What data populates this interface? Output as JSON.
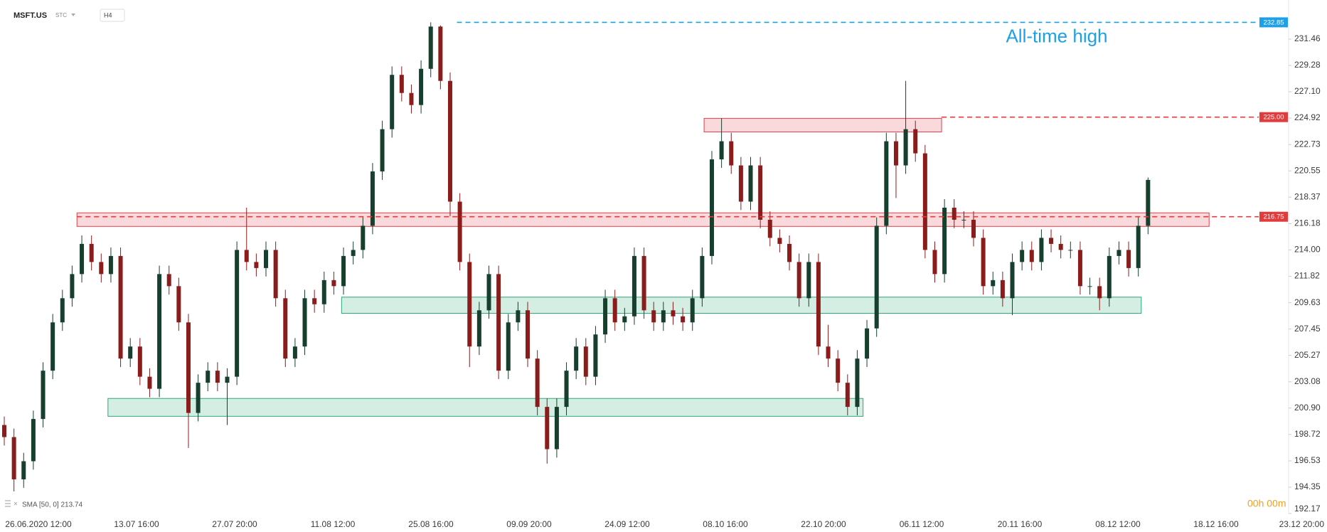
{
  "header": {
    "symbol": "MSFT.US",
    "market": "STC",
    "interval": "H4"
  },
  "indicator": "SMA [50, 0] 213.74",
  "timer": "00h 00m",
  "chart_data": {
    "type": "candlestick",
    "up_color": "#163f2e",
    "down_color": "#8a1c1c",
    "ylim": [
      192.17,
      234.7
    ],
    "yticks": [
      231.46,
      229.28,
      {
        "value": 227.1,
        "label": "227.10"
      },
      224.92,
      222.73,
      220.55,
      218.37,
      216.18,
      {
        "value": 214,
        "label": "214.00"
      },
      211.82,
      209.63,
      207.45,
      205.27,
      203.08,
      {
        "value": 200.9,
        "label": "200.90"
      },
      198.72,
      196.53,
      194.35,
      192.17
    ],
    "x_labels": [
      "26.06.2020  12:00",
      "13.07  16:00",
      "27.07  20:00",
      "11.08  12:00",
      "25.08  16:00",
      "09.09  20:00",
      "24.09  12:00",
      "08.10  16:00",
      "22.10  20:00",
      "06.11  12:00",
      "20.11  16:00",
      "08.12  12:00",
      "18.12  16:00",
      "23.12  20:00"
    ],
    "candles": {
      "open": [
        199.5,
        198.5,
        195,
        196.5,
        200,
        204,
        208,
        210,
        212,
        214.5,
        213,
        212,
        213.5,
        205,
        206,
        203.5,
        202.5,
        212,
        211,
        208,
        200.5,
        203,
        204,
        203,
        203.5,
        214,
        213,
        212.5,
        214,
        210,
        205,
        206,
        210,
        209.5,
        211.5,
        211,
        213.5,
        214,
        216,
        220.5,
        224,
        228.5,
        227,
        226,
        229,
        232.5,
        228,
        218,
        213,
        206,
        209,
        212,
        204,
        208,
        209,
        205,
        201,
        197.5,
        201,
        204,
        206,
        203.5,
        207,
        210,
        208,
        208.5,
        213.5,
        209,
        208,
        209,
        208.5,
        208,
        210,
        213.5,
        221.5,
        223,
        221,
        218,
        221,
        216.5,
        215,
        214.5,
        213,
        210,
        213,
        206,
        205,
        203,
        201,
        205,
        207.5,
        216,
        223,
        221,
        224,
        222,
        214,
        212,
        217.5,
        216.5,
        216.5,
        215,
        211,
        211.5,
        210,
        213,
        214,
        213,
        215,
        214.5,
        214,
        214,
        211,
        211,
        210,
        213.5,
        214,
        212.5,
        216
      ],
      "high": [
        200.2,
        199.2,
        197.2,
        200.7,
        204.7,
        208.7,
        210.7,
        212.7,
        215.2,
        215.2,
        213.7,
        214.2,
        214.2,
        206.7,
        206.7,
        204.2,
        212.7,
        212.7,
        211.7,
        208.7,
        203.7,
        204.7,
        204.7,
        204.2,
        214.7,
        217.5,
        213.7,
        214.7,
        214.7,
        210.7,
        206.7,
        210.7,
        210.7,
        212.2,
        212.2,
        214.2,
        214.7,
        216.7,
        221.2,
        224.7,
        229.2,
        229.2,
        227.7,
        229.7,
        232.85,
        232.6,
        228.7,
        218.7,
        213.7,
        209.7,
        212.7,
        212.7,
        208.7,
        209.7,
        209.7,
        205.7,
        201.7,
        201.7,
        204.7,
        206.7,
        206.7,
        207.7,
        210.7,
        210.7,
        209.2,
        214.2,
        214.2,
        209.7,
        209.7,
        209.7,
        209.2,
        210.7,
        214.2,
        222.2,
        224.9,
        223.7,
        221.7,
        221.7,
        221.7,
        217.2,
        215.7,
        215.2,
        213.7,
        213.7,
        213.7,
        207.8,
        205.7,
        203.7,
        205.7,
        208.2,
        216.7,
        223.7,
        223.7,
        228,
        224.7,
        222.7,
        214.7,
        218.2,
        218.2,
        217.2,
        217.2,
        215.7,
        212.2,
        212.2,
        213.7,
        214.7,
        214.7,
        215.7,
        215.7,
        215.2,
        214.7,
        214.7,
        211.7,
        211.7,
        214.2,
        214.7,
        214.7,
        216.7,
        220
      ],
      "low": [
        197.8,
        194,
        194.3,
        195.8,
        199.3,
        203.3,
        207.3,
        209.3,
        211.3,
        212.3,
        211.3,
        211.3,
        204.3,
        204.3,
        202.8,
        201.8,
        201.8,
        210.3,
        207.3,
        197.6,
        199.8,
        202.3,
        202.3,
        199.5,
        202.8,
        212.3,
        211.8,
        211.8,
        209.3,
        204.3,
        204.3,
        205.3,
        208.8,
        208.8,
        210.3,
        210.3,
        212.8,
        213.3,
        215.3,
        219.8,
        223.3,
        226.3,
        225.3,
        225.3,
        228.3,
        227.3,
        216.8,
        212.3,
        204.3,
        205.3,
        208.3,
        203.3,
        203.3,
        207.3,
        204.3,
        200.3,
        196.3,
        196.8,
        200.3,
        203.3,
        202.8,
        202.8,
        206.3,
        207.3,
        207.3,
        207.8,
        208.3,
        207.3,
        207.3,
        207.8,
        207.3,
        207.3,
        209.3,
        212.8,
        220.8,
        220.3,
        217.3,
        217.3,
        215.8,
        214.3,
        213.8,
        212.3,
        209.3,
        209.3,
        205.3,
        204.3,
        202.3,
        200.3,
        200.3,
        204.3,
        206.8,
        215.3,
        218.3,
        220.3,
        221.3,
        213.3,
        211.3,
        211.3,
        215.8,
        215.8,
        214.3,
        210.3,
        210.3,
        209.3,
        208.6,
        212.3,
        212.3,
        212.3,
        213.8,
        213.3,
        213.3,
        210.3,
        210.3,
        209,
        209.3,
        212.8,
        211.8,
        211.8,
        215.3
      ],
      "close": [
        198.5,
        195,
        196.5,
        200,
        204,
        208,
        210,
        212,
        214.5,
        213,
        212,
        213.5,
        205,
        206,
        203.5,
        202.5,
        212,
        211,
        208,
        200.5,
        203,
        204,
        203,
        203.5,
        214,
        213,
        212.5,
        214,
        210,
        205,
        206,
        210,
        209.5,
        211.5,
        211,
        213.5,
        214,
        216,
        220.5,
        224,
        228.5,
        227,
        226,
        229,
        232.5,
        228,
        218,
        213,
        206,
        209,
        212,
        204,
        208,
        209,
        205,
        201,
        197.5,
        201,
        204,
        206,
        203.5,
        207,
        210,
        208,
        208.5,
        213.5,
        209,
        208,
        209,
        208.5,
        208,
        210,
        213.5,
        221.5,
        223,
        221,
        218,
        221,
        216.5,
        215,
        214.5,
        213,
        210,
        213,
        206,
        205,
        203,
        201,
        205,
        207.5,
        216,
        223,
        221,
        224,
        222,
        214,
        212,
        217.5,
        216.5,
        216.5,
        215,
        211,
        211.5,
        210,
        213,
        214,
        213,
        215,
        214.5,
        214,
        214,
        211,
        211,
        210,
        213.5,
        214,
        212.5,
        216,
        219.8
      ]
    },
    "zones": [
      {
        "low": 215.95,
        "high": 217.07,
        "start": 7.5,
        "end": 124.3,
        "color": "#e0404a"
      },
      {
        "low": 223.77,
        "high": 224.9,
        "start": 72.2,
        "end": 96.7,
        "color": "#e0404a"
      },
      {
        "low": 208.75,
        "high": 210.09,
        "start": 34.8,
        "end": 117.3,
        "color": "#2aa878"
      },
      {
        "low": 200.22,
        "high": 201.7,
        "start": 10.7,
        "end": 88.6,
        "color": "#2aa878"
      }
    ],
    "levels": [
      {
        "price": 232.85,
        "start": 46.7,
        "color": "#1ea0e6",
        "text": "All-time high"
      },
      {
        "price": {
          "value": 225,
          "label": "225.00"
        },
        "start": 96.7,
        "color": "#e23b3b"
      },
      {
        "price": 216.75,
        "start": 7.5,
        "color": "#e23b3b"
      }
    ]
  }
}
